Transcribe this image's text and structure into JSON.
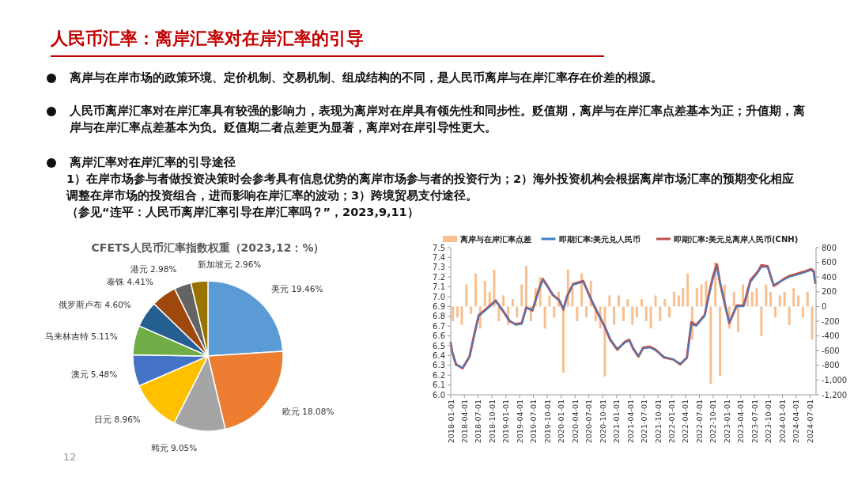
{
  "chart_data": [
    {
      "type": "other",
      "title": "人民币汇率：离岸汇率对在岸汇率的引导",
      "annotations": [
        "离岸与在岸市场的政策环境、定价机制、交易机制、组成结构的不同，是人民币离岸与在岸汇率存在价差的根源。",
        "人民币离岸汇率对在岸汇率具有较强的影响力，表现为离岸对在岸具有领先性和同步性。贬值期，离岸与在岸汇率点差基本为正；升值期，离岸与在岸汇率点差基本为负。贬值期二者点差更为显著，离岸对在岸引导性更大。",
        "离岸汇率对在岸汇率的引导途径",
        "1）在岸市场参与者做投资决策时会参考具有信息优势的离岸市场参与者的投资行为；2）海外投资机构会根据离岸市场汇率的预期变化相应调整在岸市场的投资组合，进而影响在岸汇率的波动；3）跨境贸易支付途径。",
        "（参见“连平：人民币离岸汇率引导在岸汇率吗？”，2023,9,11）",
        "12"
      ]
    },
    {
      "type": "pie",
      "title": "CFETS人民币汇率指数权重（2023,12：%）",
      "categories": [
        "美元",
        "欧元",
        "韩元",
        "日元",
        "澳元",
        "马来林吉特",
        "俄罗斯卢布",
        "泰铢",
        "港元",
        "新加坡元"
      ],
      "values": [
        19.46,
        18.08,
        9.05,
        8.96,
        5.48,
        5.11,
        4.6,
        4.41,
        2.98,
        2.96
      ],
      "value_labels": [
        "19.46%",
        "18.08%",
        "9.05%",
        "8.96%",
        "5.48%",
        "5.11%",
        "4.60%",
        "4.41%",
        "2.98%",
        "2.96%"
      ],
      "colors": [
        "#5b9bd5",
        "#ed7d31",
        "#a5a5a5",
        "#ffc000",
        "#4472c4",
        "#70ad47",
        "#255e91",
        "#9e480e",
        "#636363",
        "#997300"
      ]
    },
    {
      "type": "line",
      "legend": "top",
      "xlim": [
        "2018-01-01",
        "2024-08-10"
      ],
      "xticks": [
        "2018-01-01",
        "2018-04-01",
        "2018-07-01",
        "2018-10-01",
        "2019-01-01",
        "2019-04-01",
        "2019-07-01",
        "2019-10-01",
        "2020-01-01",
        "2020-04-01",
        "2020-07-01",
        "2020-10-01",
        "2021-01-01",
        "2021-04-01",
        "2021-07-01",
        "2021-10-01",
        "2022-01-01",
        "2022-04-01",
        "2022-07-01",
        "2022-10-01",
        "2023-01-01",
        "2023-04-01",
        "2023-07-01",
        "2023-10-01",
        "2024-01-01",
        "2024-04-01",
        "2024-07-01"
      ],
      "ylim": [
        6.0,
        7.5
      ],
      "yticks": [
        {
          "value": 6,
          "label": "6.0"
        },
        {
          "value": 6.1,
          "label": "6.1"
        },
        {
          "value": 6.2,
          "label": "6.2"
        },
        {
          "value": 6.3,
          "label": "6.3"
        },
        {
          "value": 6.4,
          "label": "6.4"
        },
        {
          "value": 6.5,
          "label": "6.5"
        },
        {
          "value": 6.6,
          "label": "6.6"
        },
        {
          "value": 6.7,
          "label": "6.7"
        },
        {
          "value": 6.8,
          "label": "6.8"
        },
        {
          "value": 6.9,
          "label": "6.9"
        },
        {
          "value": 7,
          "label": "7.0"
        },
        {
          "value": 7.1,
          "label": "7.1"
        },
        {
          "value": 7.2,
          "label": "7.2"
        },
        {
          "value": 7.3,
          "label": "7.3"
        },
        {
          "value": 7.4,
          "label": "7.4"
        },
        {
          "value": 7.5,
          "label": "7.5"
        }
      ],
      "y2lim": [
        -1200,
        800
      ],
      "y2ticks": [
        {
          "value": -1200,
          "label": "-1,200"
        },
        {
          "value": -1000,
          "label": "-1,000"
        },
        -800,
        -600,
        -400,
        -200,
        0,
        200,
        400,
        600,
        800
      ],
      "series": [
        {
          "type": "bar",
          "axis": "y2",
          "name": "离岸与在岸汇率点差",
          "color": "#f8c090",
          "x": [
            "2018-01-15",
            "2018-02-15",
            "2018-03-15",
            "2018-04-15",
            "2018-05-15",
            "2018-06-15",
            "2018-07-15",
            "2018-08-15",
            "2018-09-15",
            "2018-10-15",
            "2018-11-15",
            "2018-12-15",
            "2019-01-15",
            "2019-02-15",
            "2019-03-15",
            "2019-04-15",
            "2019-05-15",
            "2019-06-15",
            "2019-07-15",
            "2019-08-15",
            "2019-09-15",
            "2019-10-15",
            "2019-11-15",
            "2019-12-15",
            "2020-01-15",
            "2020-02-15",
            "2020-03-15",
            "2020-04-15",
            "2020-05-15",
            "2020-06-15",
            "2020-07-15",
            "2020-08-15",
            "2020-09-15",
            "2020-10-15",
            "2020-11-15",
            "2020-12-15",
            "2021-01-15",
            "2021-02-15",
            "2021-03-15",
            "2021-04-15",
            "2021-05-15",
            "2021-06-15",
            "2021-07-15",
            "2021-08-15",
            "2021-09-15",
            "2021-10-15",
            "2021-11-15",
            "2021-12-15",
            "2022-01-15",
            "2022-02-15",
            "2022-03-15",
            "2022-04-15",
            "2022-05-15",
            "2022-06-15",
            "2022-07-15",
            "2022-08-15",
            "2022-09-15",
            "2022-10-15",
            "2022-11-15",
            "2022-12-15",
            "2023-01-15",
            "2023-02-15",
            "2023-03-15",
            "2023-04-15",
            "2023-05-15",
            "2023-06-15",
            "2023-07-15",
            "2023-08-15",
            "2023-09-15",
            "2023-10-15",
            "2023-11-15",
            "2023-12-15",
            "2024-01-15",
            "2024-02-15",
            "2024-03-15",
            "2024-04-15",
            "2024-05-15",
            "2024-06-15",
            "2024-07-15"
          ],
          "values": [
            -200,
            -150,
            -250,
            300,
            -100,
            450,
            -300,
            350,
            200,
            500,
            -200,
            150,
            -250,
            100,
            -150,
            300,
            550,
            -200,
            250,
            400,
            -300,
            150,
            -150,
            200,
            -900,
            500,
            250,
            -200,
            450,
            -150,
            350,
            -200,
            -300,
            -950,
            150,
            -250,
            150,
            -200,
            100,
            -250,
            -150,
            100,
            -200,
            -300,
            150,
            -200,
            100,
            -150,
            200,
            150,
            250,
            450,
            -450,
            250,
            300,
            350,
            -1050,
            600,
            -950,
            300,
            -300,
            200,
            -350,
            300,
            250,
            200,
            250,
            -400,
            300,
            200,
            -150,
            150,
            200,
            -250,
            250,
            150,
            -150,
            200,
            -450
          ]
        },
        {
          "name": "即期汇率:美元兑人民币",
          "color": "#3f7fc6",
          "x": [
            "2018-01-01",
            "2018-01-10",
            "2018-02-05",
            "2018-03-20",
            "2018-05-05",
            "2018-06-05",
            "2018-07-05",
            "2018-08-20",
            "2018-10-25",
            "2018-12-10",
            "2019-01-25",
            "2019-03-05",
            "2019-04-15",
            "2019-05-15",
            "2019-06-25",
            "2019-08-05",
            "2019-09-01",
            "2019-10-01",
            "2019-11-05",
            "2019-12-20",
            "2020-01-15",
            "2020-02-10",
            "2020-03-20",
            "2020-05-25",
            "2020-07-05",
            "2020-08-10",
            "2020-10-15",
            "2020-11-20",
            "2021-01-05",
            "2021-02-25",
            "2021-03-25",
            "2021-04-20",
            "2021-05-25",
            "2021-06-25",
            "2021-08-10",
            "2021-09-15",
            "2021-11-10",
            "2022-01-10",
            "2022-02-25",
            "2022-04-10",
            "2022-05-10",
            "2022-06-10",
            "2022-08-05",
            "2022-09-05",
            "2022-09-28",
            "2022-10-25",
            "2022-11-15",
            "2022-12-10",
            "2023-01-15",
            "2023-03-05",
            "2023-04-20",
            "2023-06-05",
            "2023-07-25",
            "2023-08-15",
            "2023-09-25",
            "2023-11-05",
            "2023-12-05",
            "2024-01-10",
            "2024-02-15",
            "2024-05-15",
            "2024-07-10",
            "2024-07-25",
            "2024-08-05"
          ],
          "values": [
            6.52,
            6.45,
            6.3,
            6.28,
            6.38,
            6.6,
            6.8,
            6.86,
            6.95,
            6.87,
            6.76,
            6.71,
            6.72,
            6.88,
            6.87,
            7.05,
            7.17,
            7.1,
            7.03,
            6.96,
            6.88,
            7.0,
            7.12,
            7.15,
            7.02,
            6.9,
            6.7,
            6.57,
            6.47,
            6.53,
            6.55,
            6.48,
            6.4,
            6.47,
            6.48,
            6.45,
            6.39,
            6.36,
            6.32,
            6.37,
            6.72,
            6.7,
            6.8,
            7.02,
            7.17,
            7.3,
            7.15,
            6.98,
            6.74,
            6.9,
            6.9,
            7.15,
            7.25,
            7.3,
            7.3,
            7.12,
            7.15,
            7.17,
            7.2,
            7.24,
            7.27,
            7.25,
            7.15
          ]
        },
        {
          "name": "即期汇率:美元兑离岸人民币(CNH)",
          "color": "#c0504d",
          "x": [
            "2018-01-01",
            "2018-01-10",
            "2018-02-05",
            "2018-03-20",
            "2018-05-05",
            "2018-06-05",
            "2018-07-05",
            "2018-08-20",
            "2018-10-25",
            "2018-12-10",
            "2019-01-25",
            "2019-03-05",
            "2019-04-15",
            "2019-05-15",
            "2019-06-25",
            "2019-08-05",
            "2019-09-01",
            "2019-10-01",
            "2019-11-05",
            "2019-12-20",
            "2020-01-15",
            "2020-02-10",
            "2020-03-20",
            "2020-05-25",
            "2020-07-05",
            "2020-08-10",
            "2020-10-15",
            "2020-11-20",
            "2021-01-05",
            "2021-02-25",
            "2021-03-25",
            "2021-04-20",
            "2021-05-25",
            "2021-06-25",
            "2021-08-10",
            "2021-09-15",
            "2021-11-10",
            "2022-01-10",
            "2022-02-25",
            "2022-04-10",
            "2022-05-10",
            "2022-06-10",
            "2022-08-05",
            "2022-09-05",
            "2022-09-28",
            "2022-10-25",
            "2022-11-15",
            "2022-12-10",
            "2023-01-15",
            "2023-03-05",
            "2023-04-20",
            "2023-06-05",
            "2023-07-25",
            "2023-08-15",
            "2023-09-25",
            "2023-11-05",
            "2023-12-05",
            "2024-01-10",
            "2024-02-15",
            "2024-05-15",
            "2024-07-10",
            "2024-07-25",
            "2024-08-05"
          ],
          "values": [
            6.53,
            6.44,
            6.31,
            6.27,
            6.39,
            6.61,
            6.81,
            6.87,
            6.96,
            6.86,
            6.75,
            6.72,
            6.73,
            6.89,
            6.86,
            7.07,
            7.18,
            7.11,
            7.02,
            6.96,
            6.87,
            7.01,
            7.13,
            7.16,
            7.01,
            6.89,
            6.69,
            6.56,
            6.46,
            6.54,
            6.56,
            6.47,
            6.39,
            6.48,
            6.49,
            6.46,
            6.38,
            6.36,
            6.31,
            6.38,
            6.74,
            6.71,
            6.81,
            7.04,
            7.2,
            7.33,
            7.14,
            6.97,
            6.73,
            6.91,
            6.91,
            7.17,
            7.26,
            7.32,
            7.31,
            7.11,
            7.14,
            7.18,
            7.21,
            7.25,
            7.28,
            7.26,
            7.14
          ]
        }
      ]
    }
  ]
}
